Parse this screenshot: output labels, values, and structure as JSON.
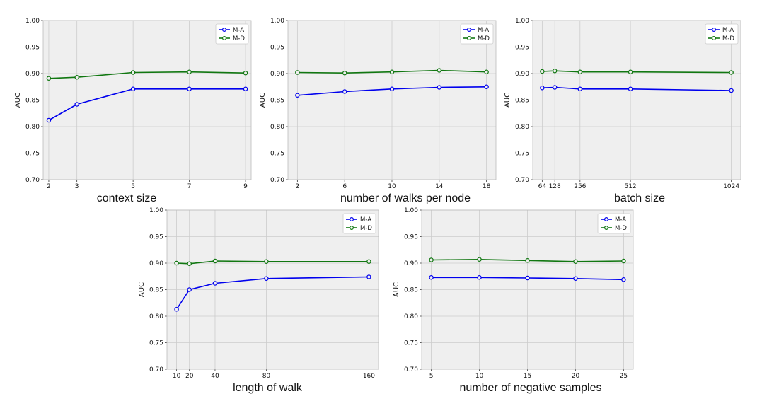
{
  "colors": {
    "M-A": "#0000ee",
    "M-D": "#117711",
    "plot_bg": "#efefef",
    "grid": "#cccccc"
  },
  "chart_data": [
    {
      "type": "line",
      "xlabel": "context size",
      "ylabel": "AUC",
      "x": [
        2,
        3,
        5,
        7,
        9
      ],
      "xticks": [
        2,
        3,
        5,
        7,
        9
      ],
      "xticklabels": [
        "2",
        "3",
        "5",
        "7",
        "9"
      ],
      "xlim": [
        1.8,
        9.2
      ],
      "ylim": [
        0.7,
        1.0
      ],
      "yticks": [
        "0.70",
        "0.75",
        "0.80",
        "0.85",
        "0.90",
        "0.95",
        "1.00"
      ],
      "grid": true,
      "legend_position": "top-right",
      "series": [
        {
          "name": "M-A",
          "values": [
            0.812,
            0.842,
            0.871,
            0.871,
            0.871
          ]
        },
        {
          "name": "M-D",
          "values": [
            0.891,
            0.893,
            0.902,
            0.903,
            0.901
          ]
        }
      ]
    },
    {
      "type": "line",
      "xlabel": "number of walks per node",
      "ylabel": "AUC",
      "x": [
        2,
        6,
        10,
        14,
        18
      ],
      "xticks": [
        2,
        6,
        10,
        14,
        18
      ],
      "xticklabels": [
        "2",
        "6",
        "10",
        "14",
        "18"
      ],
      "xlim": [
        1.2,
        18.8
      ],
      "ylim": [
        0.7,
        1.0
      ],
      "yticks": [
        "0.70",
        "0.75",
        "0.80",
        "0.85",
        "0.90",
        "0.95",
        "1.00"
      ],
      "grid": true,
      "legend_position": "top-right",
      "series": [
        {
          "name": "M-A",
          "values": [
            0.859,
            0.866,
            0.871,
            0.874,
            0.875
          ]
        },
        {
          "name": "M-D",
          "values": [
            0.902,
            0.901,
            0.903,
            0.906,
            0.903
          ]
        }
      ]
    },
    {
      "type": "line",
      "xlabel": "batch size",
      "ylabel": "AUC",
      "x": [
        64,
        128,
        256,
        512,
        1024
      ],
      "xticks": [
        64,
        128,
        256,
        512,
        1024
      ],
      "xticklabels": [
        "64",
        "128",
        "256",
        "512",
        "1024"
      ],
      "xlim": [
        16,
        1072
      ],
      "ylim": [
        0.7,
        1.0
      ],
      "yticks": [
        "0.70",
        "0.75",
        "0.80",
        "0.85",
        "0.90",
        "0.95",
        "1.00"
      ],
      "grid": true,
      "legend_position": "top-right",
      "series": [
        {
          "name": "M-A",
          "values": [
            0.873,
            0.874,
            0.871,
            0.871,
            0.868
          ]
        },
        {
          "name": "M-D",
          "values": [
            0.904,
            0.905,
            0.903,
            0.903,
            0.902
          ]
        }
      ]
    },
    {
      "type": "line",
      "xlabel": "length of walk",
      "ylabel": "AUC",
      "x": [
        10,
        20,
        40,
        80,
        160
      ],
      "xticks": [
        10,
        20,
        40,
        80,
        160
      ],
      "xticklabels": [
        "10",
        "20",
        "40",
        "80",
        "160"
      ],
      "xlim": [
        2.5,
        167.5
      ],
      "ylim": [
        0.7,
        1.0
      ],
      "yticks": [
        "0.70",
        "0.75",
        "0.80",
        "0.85",
        "0.90",
        "0.95",
        "1.00"
      ],
      "grid": true,
      "legend_position": "top-right",
      "series": [
        {
          "name": "M-A",
          "values": [
            0.813,
            0.85,
            0.862,
            0.871,
            0.874
          ]
        },
        {
          "name": "M-D",
          "values": [
            0.9,
            0.899,
            0.904,
            0.903,
            0.903
          ]
        }
      ]
    },
    {
      "type": "line",
      "xlabel": "number of negative samples",
      "ylabel": "AUC",
      "x": [
        5,
        10,
        15,
        20,
        25
      ],
      "xticks": [
        5,
        10,
        15,
        20,
        25
      ],
      "xticklabels": [
        "5",
        "10",
        "15",
        "20",
        "25"
      ],
      "xlim": [
        4,
        26
      ],
      "ylim": [
        0.7,
        1.0
      ],
      "yticks": [
        "0.70",
        "0.75",
        "0.80",
        "0.85",
        "0.90",
        "0.95",
        "1.00"
      ],
      "grid": true,
      "legend_position": "top-right",
      "series": [
        {
          "name": "M-A",
          "values": [
            0.873,
            0.873,
            0.872,
            0.871,
            0.869
          ]
        },
        {
          "name": "M-D",
          "values": [
            0.906,
            0.907,
            0.905,
            0.903,
            0.904
          ]
        }
      ]
    }
  ]
}
